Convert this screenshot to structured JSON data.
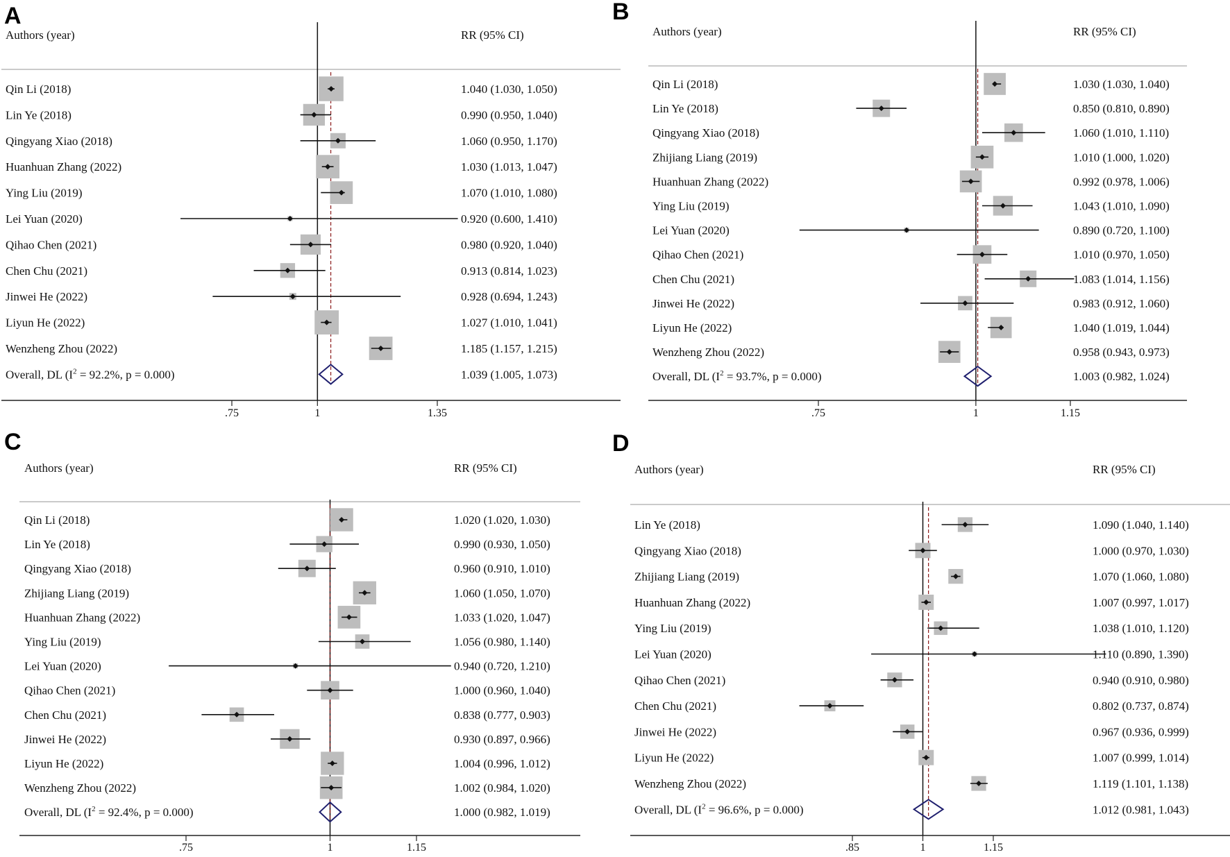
{
  "chart_data": [
    {
      "type": "forest",
      "panel": "A",
      "header_left": "Authors (year)",
      "header_right": "RR (95% CI)",
      "xlim": [
        0.5,
        1.6
      ],
      "ticks": [
        {
          "v": 0.75,
          "label": ".75"
        },
        {
          "v": 1,
          "label": "1"
        },
        {
          "v": 1.35,
          "label": "1.35"
        }
      ],
      "null_line": 1,
      "studies": [
        {
          "label": "Qin Li (2018)",
          "rr": 1.04,
          "lo": 1.03,
          "hi": 1.05,
          "w": 1.0,
          "ci_text": "1.040 (1.030, 1.050)"
        },
        {
          "label": "Lin Ye (2018)",
          "rr": 0.99,
          "lo": 0.95,
          "hi": 1.04,
          "w": 0.88,
          "ci_text": "0.990 (0.950, 1.040)"
        },
        {
          "label": "Qingyang Xiao (2018)",
          "rr": 1.06,
          "lo": 0.95,
          "hi": 1.17,
          "w": 0.62,
          "ci_text": "1.060 (0.950, 1.170)"
        },
        {
          "label": "Huanhuan Zhang (2022)",
          "rr": 1.03,
          "lo": 1.013,
          "hi": 1.047,
          "w": 0.95,
          "ci_text": "1.030 (1.013, 1.047)"
        },
        {
          "label": "Ying Liu (2019)",
          "rr": 1.07,
          "lo": 1.01,
          "hi": 1.08,
          "w": 0.92,
          "ci_text": "1.070 (1.010, 1.080)"
        },
        {
          "label": "Lei Yuan (2020)",
          "rr": 0.92,
          "lo": 0.6,
          "hi": 1.41,
          "w": 0.08,
          "ci_text": "0.920 (0.600, 1.410)"
        },
        {
          "label": "Qihao Chen (2021)",
          "rr": 0.98,
          "lo": 0.92,
          "hi": 1.04,
          "w": 0.82,
          "ci_text": "0.980 (0.920, 1.040)"
        },
        {
          "label": "Chen Chu (2021)",
          "rr": 0.913,
          "lo": 0.814,
          "hi": 1.023,
          "w": 0.6,
          "ci_text": "0.913 (0.814, 1.023)"
        },
        {
          "label": "Jinwei He (2022)",
          "rr": 0.928,
          "lo": 0.694,
          "hi": 1.243,
          "w": 0.28,
          "ci_text": "0.928 (0.694, 1.243)"
        },
        {
          "label": "Liyun He (2022)",
          "rr": 1.027,
          "lo": 1.01,
          "hi": 1.041,
          "w": 0.98,
          "ci_text": "1.027 (1.010, 1.041)"
        },
        {
          "label": "Wenzheng Zhou (2022)",
          "rr": 1.185,
          "lo": 1.157,
          "hi": 1.215,
          "w": 0.95,
          "ci_text": "1.185 (1.157, 1.215)"
        }
      ],
      "overall": {
        "label_prefix": "Overall, DL (I",
        "sup": "2",
        "label_suffix": " = 92.2%, p = 0.000)",
        "rr": 1.039,
        "lo": 1.005,
        "hi": 1.073,
        "ci_text": "1.039 (1.005, 1.073)"
      }
    },
    {
      "type": "forest",
      "panel": "B",
      "header_left": "Authors (year)",
      "header_right": "RR (95% CI)",
      "xlim": [
        0.6,
        1.35
      ],
      "ticks": [
        {
          "v": 0.75,
          "label": ".75"
        },
        {
          "v": 1,
          "label": "1"
        },
        {
          "v": 1.15,
          "label": "1.15"
        }
      ],
      "null_line": 1,
      "studies": [
        {
          "label": "Qin Li (2018)",
          "rr": 1.03,
          "lo": 1.03,
          "hi": 1.04,
          "w": 0.95,
          "ci_text": "1.030 (1.030, 1.040)"
        },
        {
          "label": "Lin Ye (2018)",
          "rr": 0.85,
          "lo": 0.81,
          "hi": 0.89,
          "w": 0.75,
          "ci_text": "0.850 (0.810, 0.890)"
        },
        {
          "label": "Qingyang Xiao (2018)",
          "rr": 1.06,
          "lo": 1.01,
          "hi": 1.11,
          "w": 0.8,
          "ci_text": "1.060 (1.010, 1.110)"
        },
        {
          "label": "Zhijiang Liang (2019)",
          "rr": 1.01,
          "lo": 1.0,
          "hi": 1.02,
          "w": 0.98,
          "ci_text": "1.010 (1.000, 1.020)"
        },
        {
          "label": "Huanhuan Zhang (2022)",
          "rr": 0.992,
          "lo": 0.978,
          "hi": 1.006,
          "w": 0.95,
          "ci_text": "0.992 (0.978, 1.006)"
        },
        {
          "label": "Ying Liu (2019)",
          "rr": 1.043,
          "lo": 1.01,
          "hi": 1.09,
          "w": 0.85,
          "ci_text": "1.043 (1.010, 1.090)"
        },
        {
          "label": "Lei Yuan (2020)",
          "rr": 0.89,
          "lo": 0.72,
          "hi": 1.1,
          "w": 0.1,
          "ci_text": "0.890 (0.720, 1.100)"
        },
        {
          "label": "Qihao Chen (2021)",
          "rr": 1.01,
          "lo": 0.97,
          "hi": 1.05,
          "w": 0.8,
          "ci_text": "1.010 (0.970, 1.050)"
        },
        {
          "label": "Chen Chu (2021)",
          "rr": 1.083,
          "lo": 1.014,
          "hi": 1.156,
          "w": 0.72,
          "ci_text": "1.083 (1.014, 1.156)"
        },
        {
          "label": "Jinwei He (2022)",
          "rr": 0.983,
          "lo": 0.912,
          "hi": 1.06,
          "w": 0.62,
          "ci_text": "0.983 (0.912, 1.060)"
        },
        {
          "label": "Liyun He (2022)",
          "rr": 1.04,
          "lo": 1.019,
          "hi": 1.044,
          "w": 0.92,
          "ci_text": "1.040 (1.019, 1.044)"
        },
        {
          "label": "Wenzheng Zhou (2022)",
          "rr": 0.958,
          "lo": 0.943,
          "hi": 0.973,
          "w": 0.95,
          "ci_text": "0.958 (0.943, 0.973)"
        }
      ],
      "overall": {
        "label_prefix": "Overall, DL (I",
        "sup": "2",
        "label_suffix": " = 93.7%, p = 0.000)",
        "rr": 1.003,
        "lo": 0.982,
        "hi": 1.024,
        "ci_text": "1.003 (0.982, 1.024)"
      }
    },
    {
      "type": "forest",
      "panel": "C",
      "header_left": "Authors (year)",
      "header_right": "RR (95% CI)",
      "xlim": [
        0.65,
        1.3
      ],
      "ticks": [
        {
          "v": 0.75,
          "label": ".75"
        },
        {
          "v": 1,
          "label": "1"
        },
        {
          "v": 1.15,
          "label": "1.15"
        }
      ],
      "null_line": 1,
      "studies": [
        {
          "label": "Qin Li (2018)",
          "rr": 1.02,
          "lo": 1.02,
          "hi": 1.03,
          "w": 1.0,
          "ci_text": "1.020 (1.020, 1.030)"
        },
        {
          "label": "Lin Ye (2018)",
          "rr": 0.99,
          "lo": 0.93,
          "hi": 1.05,
          "w": 0.7,
          "ci_text": "0.990 (0.930, 1.050)"
        },
        {
          "label": "Qingyang Xiao (2018)",
          "rr": 0.96,
          "lo": 0.91,
          "hi": 1.01,
          "w": 0.75,
          "ci_text": "0.960 (0.910, 1.010)"
        },
        {
          "label": "Zhijiang Liang (2019)",
          "rr": 1.06,
          "lo": 1.05,
          "hi": 1.07,
          "w": 1.0,
          "ci_text": "1.060 (1.050, 1.070)"
        },
        {
          "label": "Huanhuan Zhang (2022)",
          "rr": 1.033,
          "lo": 1.02,
          "hi": 1.047,
          "w": 0.98,
          "ci_text": "1.033 (1.020, 1.047)"
        },
        {
          "label": "Ying Liu (2019)",
          "rr": 1.056,
          "lo": 0.98,
          "hi": 1.14,
          "w": 0.62,
          "ci_text": "1.056 (0.980, 1.140)"
        },
        {
          "label": "Lei Yuan (2020)",
          "rr": 0.94,
          "lo": 0.72,
          "hi": 1.21,
          "w": 0.1,
          "ci_text": "0.940 (0.720, 1.210)"
        },
        {
          "label": "Qihao Chen (2021)",
          "rr": 1.0,
          "lo": 0.96,
          "hi": 1.04,
          "w": 0.8,
          "ci_text": "1.000 (0.960, 1.040)"
        },
        {
          "label": "Chen Chu (2021)",
          "rr": 0.838,
          "lo": 0.777,
          "hi": 0.903,
          "w": 0.62,
          "ci_text": "0.838 (0.777, 0.903)"
        },
        {
          "label": "Jinwei He (2022)",
          "rr": 0.93,
          "lo": 0.897,
          "hi": 0.966,
          "w": 0.85,
          "ci_text": "0.930 (0.897, 0.966)"
        },
        {
          "label": "Liyun He (2022)",
          "rr": 1.004,
          "lo": 0.996,
          "hi": 1.012,
          "w": 1.0,
          "ci_text": "1.004 (0.996, 1.012)"
        },
        {
          "label": "Wenzheng Zhou (2022)",
          "rr": 1.002,
          "lo": 0.984,
          "hi": 1.02,
          "w": 0.98,
          "ci_text": "1.002 (0.984, 1.020)"
        }
      ],
      "overall": {
        "label_prefix": "Overall, DL (I",
        "sup": "2",
        "label_suffix": " = 92.4%, p = 0.000)",
        "rr": 1.0,
        "lo": 0.982,
        "hi": 1.019,
        "ci_text": "1.000 (0.982, 1.019)"
      }
    },
    {
      "type": "forest",
      "panel": "D",
      "header_left": "Authors (year)",
      "header_right": "RR (95% CI)",
      "xlim": [
        0.7,
        1.4
      ],
      "ticks": [
        {
          "v": 0.85,
          "label": ".85"
        },
        {
          "v": 1,
          "label": "1"
        },
        {
          "v": 1.15,
          "label": "1.15"
        }
      ],
      "null_line": 1,
      "studies": [
        {
          "label": "Lin Ye (2018)",
          "rr": 1.09,
          "lo": 1.04,
          "hi": 1.14,
          "w": 0.6,
          "ci_text": "1.090 (1.040, 1.140)"
        },
        {
          "label": "Qingyang Xiao (2018)",
          "rr": 1.0,
          "lo": 0.97,
          "hi": 1.03,
          "w": 0.62,
          "ci_text": "1.000 (0.970, 1.030)"
        },
        {
          "label": "Zhijiang Liang (2019)",
          "rr": 1.07,
          "lo": 1.06,
          "hi": 1.08,
          "w": 0.6,
          "ci_text": "1.070 (1.060, 1.080)"
        },
        {
          "label": "Huanhuan Zhang (2022)",
          "rr": 1.007,
          "lo": 0.997,
          "hi": 1.017,
          "w": 0.62,
          "ci_text": "1.007 (0.997, 1.017)"
        },
        {
          "label": "Ying Liu (2019)",
          "rr": 1.038,
          "lo": 1.01,
          "hi": 1.12,
          "w": 0.55,
          "ci_text": "1.038 (1.010, 1.120)"
        },
        {
          "label": "Lei Yuan (2020)",
          "rr": 1.11,
          "lo": 0.89,
          "hi": 1.39,
          "w": 0.08,
          "ci_text": "1.110 (0.890, 1.390)"
        },
        {
          "label": "Qihao Chen (2021)",
          "rr": 0.94,
          "lo": 0.91,
          "hi": 0.98,
          "w": 0.6,
          "ci_text": "0.940 (0.910, 0.980)"
        },
        {
          "label": "Chen Chu (2021)",
          "rr": 0.802,
          "lo": 0.737,
          "hi": 0.874,
          "w": 0.45,
          "ci_text": "0.802 (0.737, 0.874)"
        },
        {
          "label": "Jinwei He (2022)",
          "rr": 0.967,
          "lo": 0.936,
          "hi": 0.999,
          "w": 0.58,
          "ci_text": "0.967 (0.936, 0.999)"
        },
        {
          "label": "Liyun He (2022)",
          "rr": 1.007,
          "lo": 0.999,
          "hi": 1.014,
          "w": 0.62,
          "ci_text": "1.007 (0.999, 1.014)"
        },
        {
          "label": "Wenzheng Zhou (2022)",
          "rr": 1.119,
          "lo": 1.101,
          "hi": 1.138,
          "w": 0.6,
          "ci_text": "1.119 (1.101, 1.138)"
        }
      ],
      "overall": {
        "label_prefix": "Overall, DL (I",
        "sup": "2",
        "label_suffix": " = 96.6%, p = 0.000)",
        "rr": 1.012,
        "lo": 0.981,
        "hi": 1.043,
        "ci_text": "1.012 (0.981, 1.043)"
      }
    }
  ]
}
